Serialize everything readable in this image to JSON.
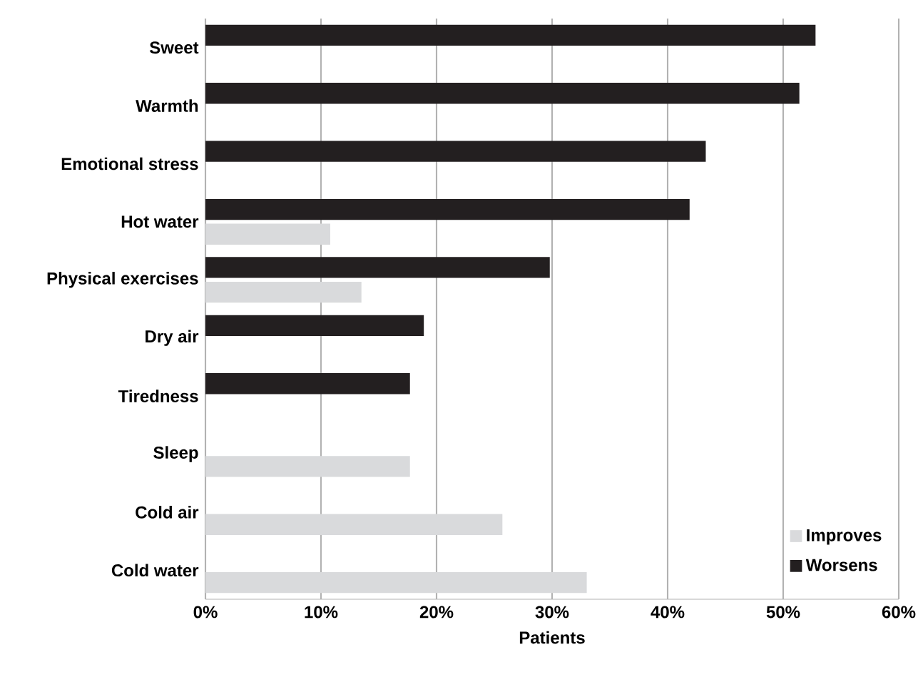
{
  "chart_data": {
    "type": "bar",
    "orientation": "horizontal",
    "xlabel": "Patients",
    "categories": [
      "Sweet",
      "Warmth",
      "Emotional stress",
      "Hot water",
      "Physical exercises",
      "Dry air",
      "Tiredness",
      "Sleep",
      "Cold air",
      "Cold water"
    ],
    "series": [
      {
        "name": "Improves",
        "color": "#d9dadc",
        "values": [
          null,
          null,
          null,
          10.8,
          13.5,
          null,
          null,
          17.7,
          25.7,
          33.0
        ]
      },
      {
        "name": "Worsens",
        "color": "#231f20",
        "values": [
          52.8,
          51.4,
          43.3,
          41.9,
          29.8,
          18.9,
          17.7,
          null,
          null,
          null
        ]
      }
    ],
    "xlim": [
      0,
      60
    ],
    "xticks": [
      {
        "value": 0,
        "label": "0%"
      },
      {
        "value": 10,
        "label": "10%"
      },
      {
        "value": 20,
        "label": "20%"
      },
      {
        "value": 30,
        "label": "30%"
      },
      {
        "value": 40,
        "label": "40%"
      },
      {
        "value": 50,
        "label": "50%"
      },
      {
        "value": 60,
        "label": "60%"
      }
    ],
    "grid": "x",
    "legend": "bottom right"
  }
}
